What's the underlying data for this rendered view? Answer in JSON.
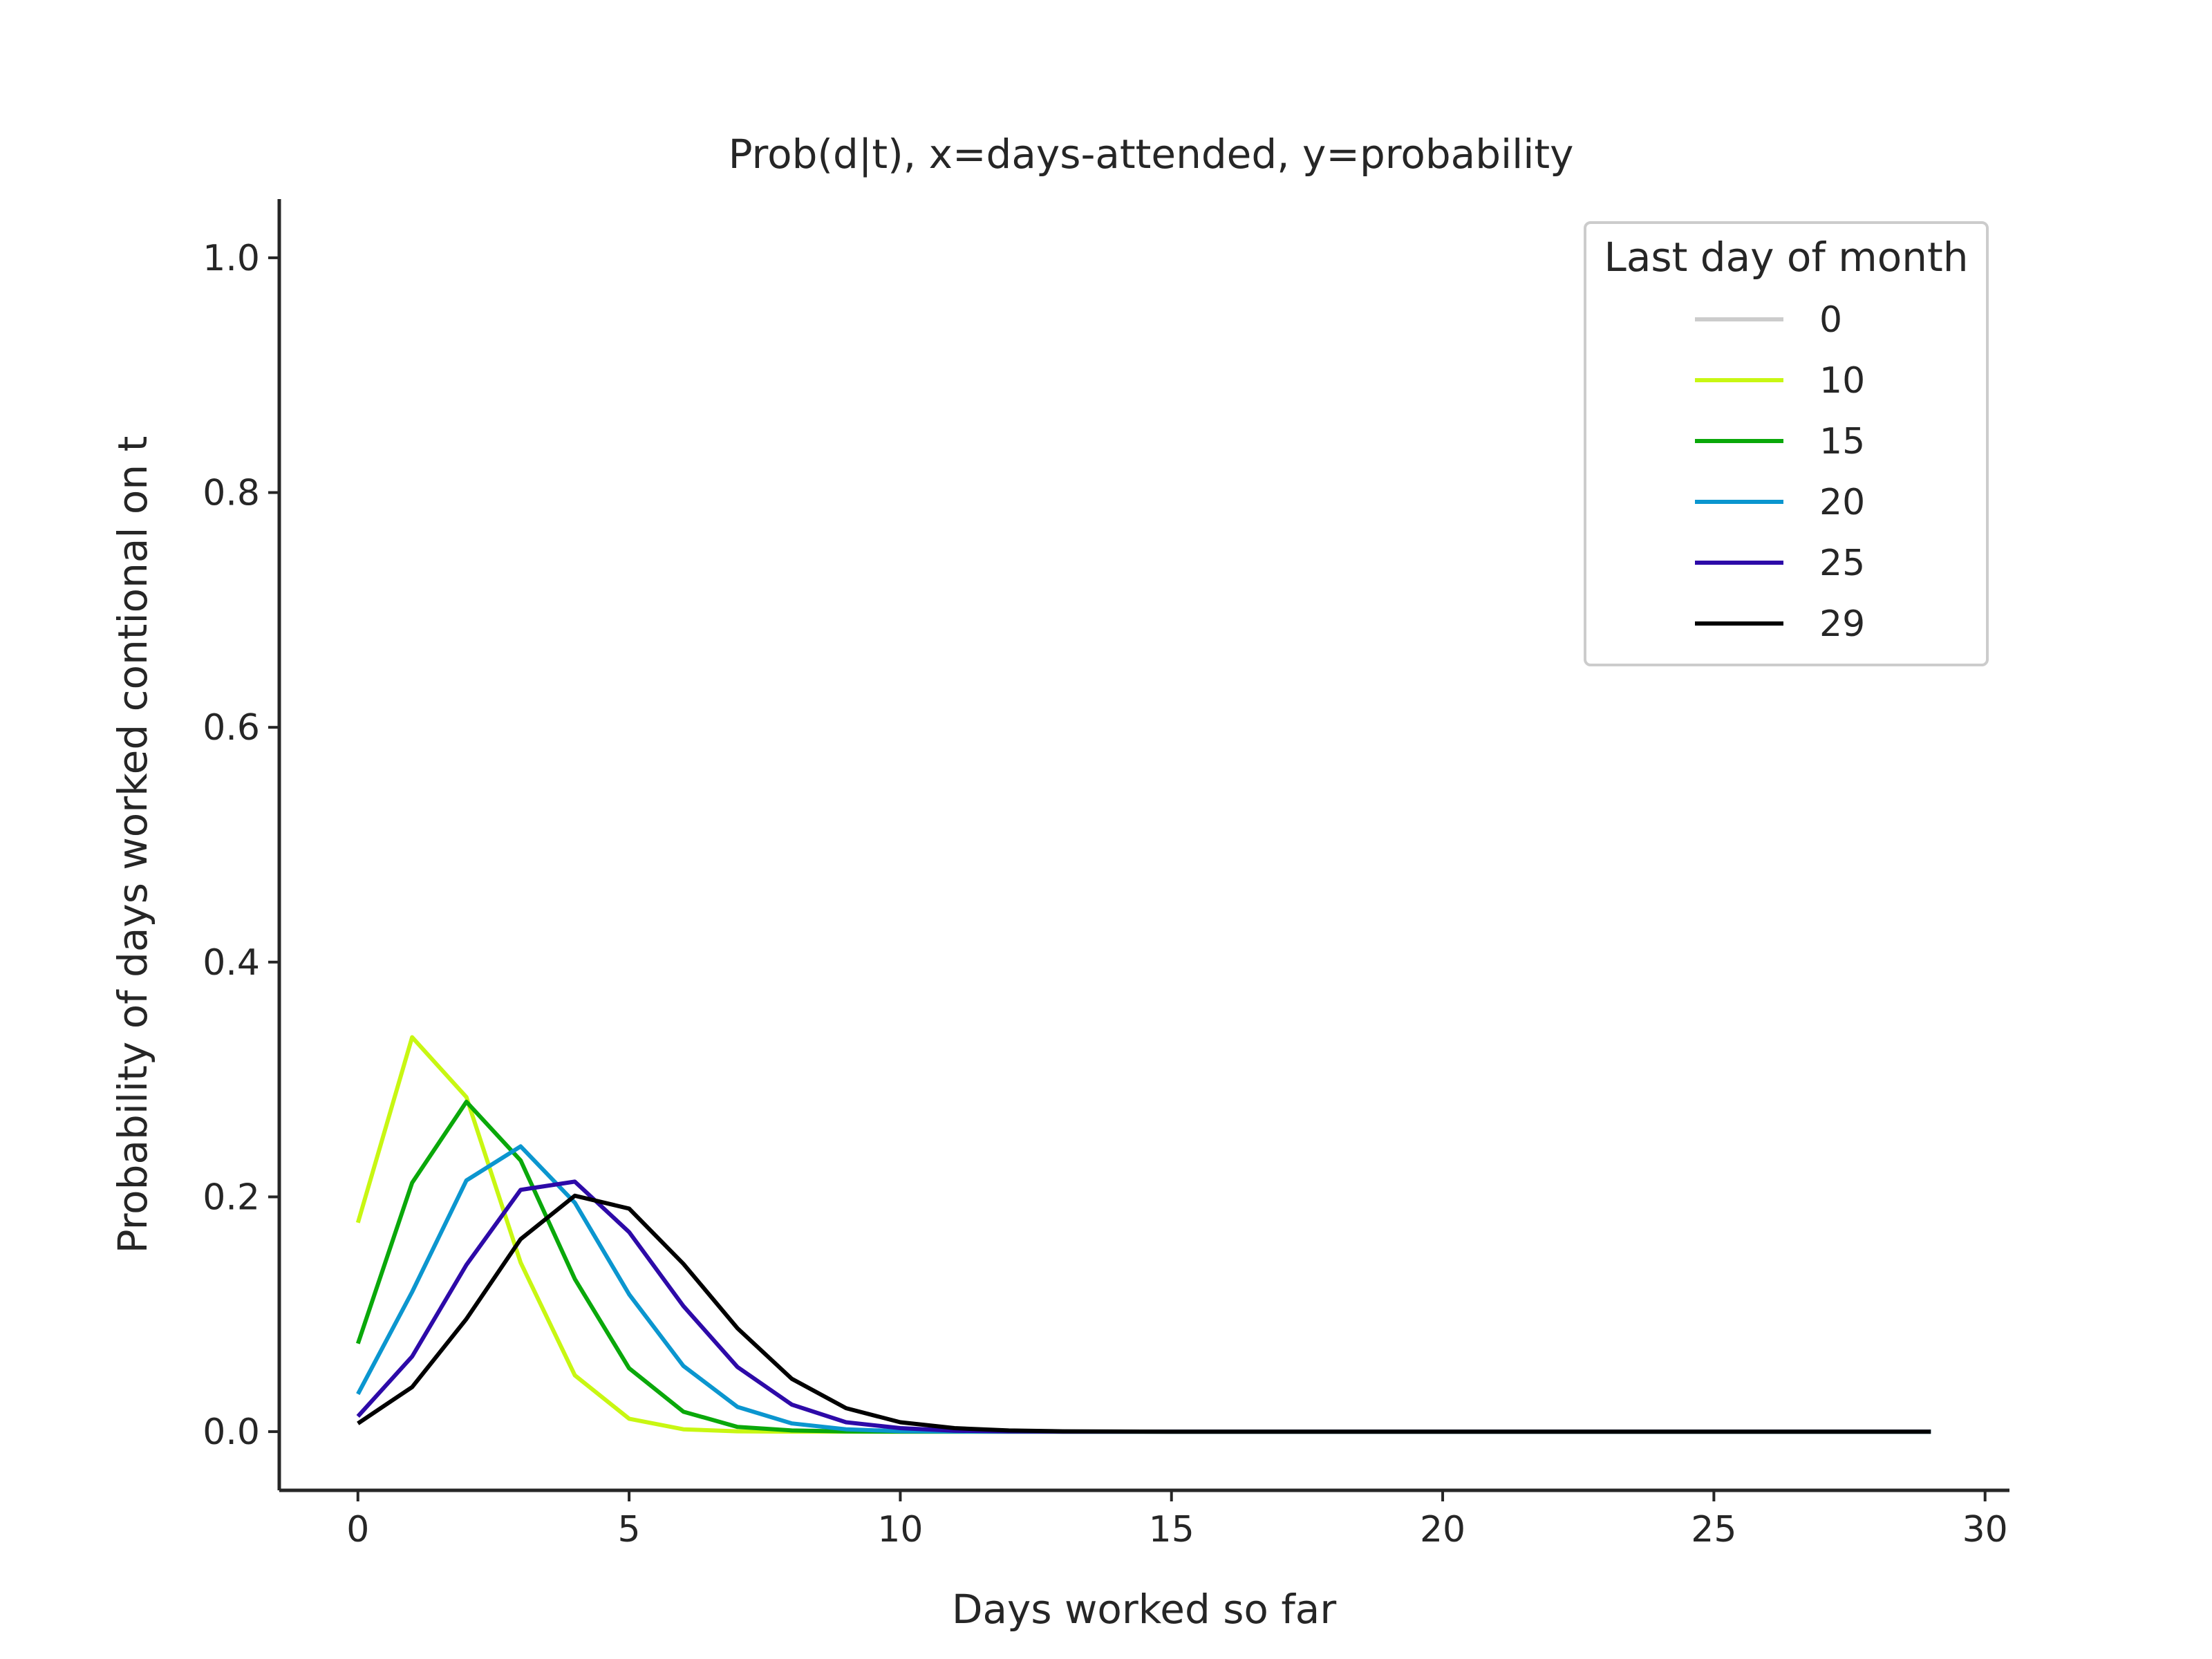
{
  "chart_data": {
    "type": "line",
    "title": "Prob(d|t), x=days-attended, y=probability",
    "xlabel": "Days worked so far",
    "ylabel": "Probability of days worked contional on t",
    "xlim": [
      -1.45,
      30.45
    ],
    "ylim": [
      -0.05,
      1.05
    ],
    "xticks": [
      0,
      5,
      10,
      15,
      20,
      25,
      30
    ],
    "yticks": [
      0.0,
      0.2,
      0.4,
      0.6,
      0.8,
      1.0
    ],
    "xtick_labels": [
      "0",
      "5",
      "10",
      "15",
      "20",
      "25",
      "30"
    ],
    "ytick_labels": [
      "0.0",
      "0.2",
      "0.4",
      "0.6",
      "0.8",
      "1.0"
    ],
    "grid": false,
    "legend": {
      "title": "Last day of month",
      "position": "top-right"
    },
    "series": [
      {
        "name": "0",
        "color": "#cccccc",
        "x": [],
        "y": []
      },
      {
        "name": "10",
        "color": "#c8f712",
        "x": [
          0,
          1,
          2,
          3,
          4,
          5,
          6,
          7,
          8,
          9,
          10,
          11,
          12,
          13,
          14,
          15,
          16,
          17,
          18,
          19,
          20,
          21,
          22,
          23,
          24,
          25,
          26,
          27,
          28,
          29
        ],
        "y": [
          0.178,
          0.336,
          0.285,
          0.144,
          0.048,
          0.011,
          0.002,
          0.0003,
          0,
          0,
          0,
          0,
          0,
          0,
          0,
          0,
          0,
          0,
          0,
          0,
          0,
          0,
          0,
          0,
          0,
          0,
          0,
          0,
          0,
          0
        ]
      },
      {
        "name": "15",
        "color": "#0aa80a",
        "x": [
          0,
          1,
          2,
          3,
          4,
          5,
          6,
          7,
          8,
          9,
          10,
          11,
          12,
          13,
          14,
          15,
          16,
          17,
          18,
          19,
          20,
          21,
          22,
          23,
          24,
          25,
          26,
          27,
          28,
          29
        ],
        "y": [
          0.075,
          0.212,
          0.281,
          0.231,
          0.13,
          0.054,
          0.017,
          0.004,
          0.001,
          0.0002,
          0,
          0,
          0,
          0,
          0,
          0,
          0,
          0,
          0,
          0,
          0,
          0,
          0,
          0,
          0,
          0,
          0,
          0,
          0,
          0
        ]
      },
      {
        "name": "20",
        "color": "#0b96cf",
        "x": [
          0,
          1,
          2,
          3,
          4,
          5,
          6,
          7,
          8,
          9,
          10,
          11,
          12,
          13,
          14,
          15,
          16,
          17,
          18,
          19,
          20,
          21,
          22,
          23,
          24,
          25,
          26,
          27,
          28,
          29
        ],
        "y": [
          0.032,
          0.119,
          0.214,
          0.243,
          0.195,
          0.117,
          0.056,
          0.021,
          0.007,
          0.002,
          0.0004,
          0.0001,
          0,
          0,
          0,
          0,
          0,
          0,
          0,
          0,
          0,
          0,
          0,
          0,
          0,
          0,
          0,
          0,
          0,
          0
        ]
      },
      {
        "name": "25",
        "color": "#2d0aa8",
        "x": [
          0,
          1,
          2,
          3,
          4,
          5,
          6,
          7,
          8,
          9,
          10,
          11,
          12,
          13,
          14,
          15,
          16,
          17,
          18,
          19,
          20,
          21,
          22,
          23,
          24,
          25,
          26,
          27,
          28,
          29
        ],
        "y": [
          0.013,
          0.064,
          0.142,
          0.206,
          0.213,
          0.17,
          0.107,
          0.055,
          0.023,
          0.008,
          0.003,
          0.0008,
          0.0002,
          0,
          0,
          0,
          0,
          0,
          0,
          0,
          0,
          0,
          0,
          0,
          0,
          0,
          0,
          0,
          0,
          0
        ]
      },
      {
        "name": "29",
        "color": "#000000",
        "x": [
          0,
          1,
          2,
          3,
          4,
          5,
          6,
          7,
          8,
          9,
          10,
          11,
          12,
          13,
          14,
          15,
          16,
          17,
          18,
          19,
          20,
          21,
          22,
          23,
          24,
          25,
          26,
          27,
          28,
          29
        ],
        "y": [
          0.007,
          0.038,
          0.096,
          0.164,
          0.201,
          0.19,
          0.143,
          0.088,
          0.045,
          0.02,
          0.008,
          0.003,
          0.001,
          0.0003,
          0.0001,
          0,
          0,
          0,
          0,
          0,
          0,
          0,
          0,
          0,
          0,
          0,
          0,
          0,
          0,
          0
        ]
      }
    ]
  }
}
